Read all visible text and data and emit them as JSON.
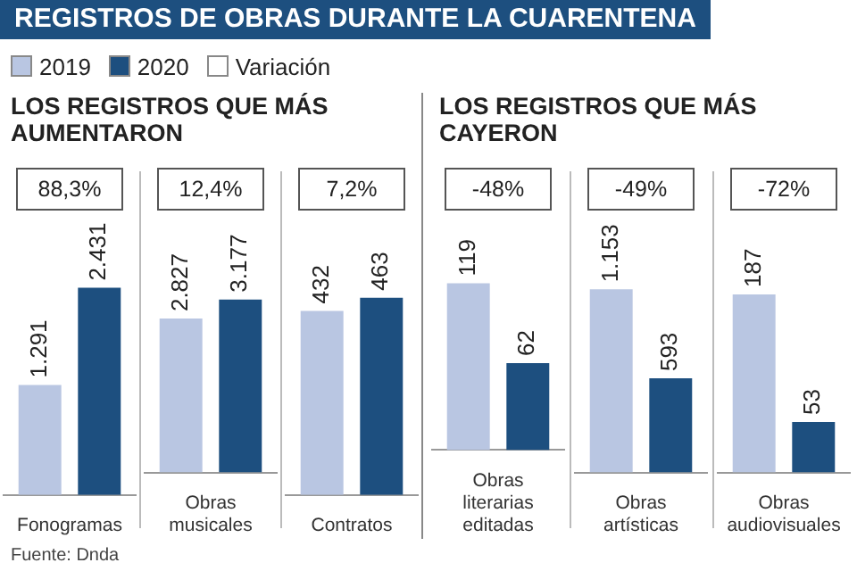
{
  "chart_data": [
    {
      "type": "bar",
      "title": "REGISTROS DE OBRAS DURANTE LA CUARENTENA",
      "subtitle": "LOS REGISTROS QUE MÁS AUMENTARON",
      "legend": "top",
      "categories": [
        "Fonogramas"
      ],
      "data_labels": true,
      "annotations": [
        "88,3%",
        "Fuente: Dnda"
      ],
      "series": [
        {
          "name": "2019",
          "color": "#b9c6e2",
          "values": [
            1291
          ],
          "value_labels": [
            "1.291"
          ]
        },
        {
          "name": "2020",
          "color": "#1d4f7f",
          "values": [
            2431
          ],
          "value_labels": [
            "2.431"
          ]
        },
        {
          "name": "Variación",
          "color": "#ffffff",
          "values": [
            null
          ]
        }
      ]
    },
    {
      "type": "bar",
      "categories": [
        "Obras musicales"
      ],
      "data_labels": true,
      "annotations": [
        "12,4%"
      ],
      "series": [
        {
          "color": "#b9c6e2",
          "values": [
            2827
          ],
          "value_labels": [
            "2.827"
          ]
        },
        {
          "color": "#1d4f7f",
          "values": [
            3177
          ],
          "value_labels": [
            "3.177"
          ]
        }
      ]
    },
    {
      "type": "bar",
      "categories": [
        "Contratos"
      ],
      "data_labels": true,
      "annotations": [
        "7,2%"
      ],
      "series": [
        {
          "color": "#b9c6e2",
          "values": [
            432
          ],
          "value_labels": [
            "432"
          ]
        },
        {
          "color": "#1d4f7f",
          "values": [
            463
          ],
          "value_labels": [
            "463"
          ]
        }
      ]
    },
    {
      "type": "bar",
      "subtitle": "LOS REGISTROS QUE MÁS CAYERON",
      "categories": [
        "Obras literarias editadas"
      ],
      "data_labels": true,
      "annotations": [
        "-48%"
      ],
      "series": [
        {
          "color": "#b9c6e2",
          "values": [
            119
          ],
          "value_labels": [
            "119"
          ]
        },
        {
          "color": "#1d4f7f",
          "values": [
            62
          ],
          "value_labels": [
            "62"
          ]
        }
      ]
    },
    {
      "type": "bar",
      "categories": [
        "Obras artísticas"
      ],
      "data_labels": true,
      "annotations": [
        "-49%"
      ],
      "series": [
        {
          "color": "#b9c6e2",
          "values": [
            1153
          ],
          "value_labels": [
            "1.153"
          ]
        },
        {
          "color": "#1d4f7f",
          "values": [
            593
          ],
          "value_labels": [
            "593"
          ]
        }
      ]
    },
    {
      "type": "bar",
      "categories": [
        "Obras audiovisuales"
      ],
      "data_labels": true,
      "annotations": [
        "-72%"
      ],
      "series": [
        {
          "color": "#b9c6e2",
          "values": [
            187
          ],
          "value_labels": [
            "187"
          ]
        },
        {
          "color": "#1d4f7f",
          "values": [
            53
          ],
          "value_labels": [
            "53"
          ]
        }
      ]
    }
  ]
}
